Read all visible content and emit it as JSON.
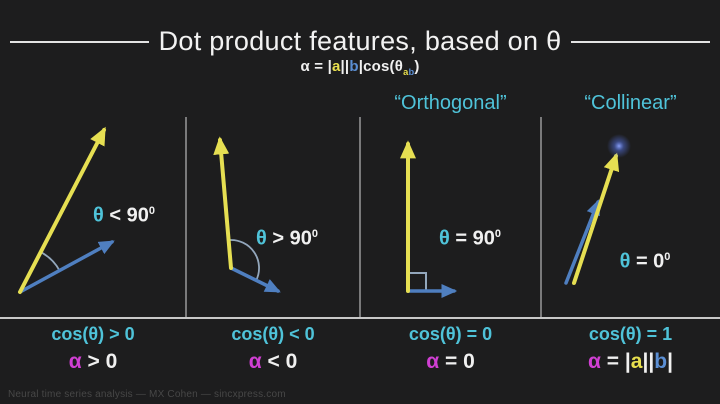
{
  "title": "Dot product features, based on θ",
  "subtitle_parts": [
    {
      "t": "α = |",
      "c": "white"
    },
    {
      "t": "a",
      "c": "yellow"
    },
    {
      "t": "||",
      "c": "white"
    },
    {
      "t": "b",
      "c": "blue"
    },
    {
      "t": "|cos(θ",
      "c": "white"
    },
    {
      "t": "a",
      "c": "yellow",
      "sub": true
    },
    {
      "t": "b",
      "c": "blue",
      "sub": true
    },
    {
      "t": ")",
      "c": "white"
    }
  ],
  "panels": [
    {
      "heading": "",
      "theta_parts": [
        {
          "t": "θ",
          "c": "cyan"
        },
        {
          "t": " < 90",
          "c": "white"
        },
        {
          "t": "0",
          "c": "white",
          "sup": true
        }
      ],
      "cos_parts": [
        {
          "t": "cos(θ) > 0",
          "c": "cyan"
        }
      ],
      "alpha_parts": [
        {
          "t": "α",
          "c": "magenta"
        },
        {
          "t": " > 0",
          "c": "white"
        }
      ]
    },
    {
      "heading": "",
      "theta_parts": [
        {
          "t": "θ",
          "c": "cyan"
        },
        {
          "t": " > 90",
          "c": "white"
        },
        {
          "t": "0",
          "c": "white",
          "sup": true
        }
      ],
      "cos_parts": [
        {
          "t": "cos(θ) < 0",
          "c": "cyan"
        }
      ],
      "alpha_parts": [
        {
          "t": "α",
          "c": "magenta"
        },
        {
          "t": " < 0",
          "c": "white"
        }
      ]
    },
    {
      "heading": "“Orthogonal”",
      "theta_parts": [
        {
          "t": "θ",
          "c": "cyan"
        },
        {
          "t": " = 90",
          "c": "white"
        },
        {
          "t": "0",
          "c": "white",
          "sup": true
        }
      ],
      "cos_parts": [
        {
          "t": "cos(θ) = 0",
          "c": "cyan"
        }
      ],
      "alpha_parts": [
        {
          "t": "α",
          "c": "magenta"
        },
        {
          "t": " = 0",
          "c": "white"
        }
      ]
    },
    {
      "heading": "“Collinear”",
      "theta_parts": [
        {
          "t": "θ",
          "c": "cyan"
        },
        {
          "t": " = 0",
          "c": "white"
        },
        {
          "t": "0",
          "c": "white",
          "sup": true
        }
      ],
      "cos_parts": [
        {
          "t": "cos(θ) = 1",
          "c": "cyan"
        }
      ],
      "alpha_parts": [
        {
          "t": "α",
          "c": "magenta"
        },
        {
          "t": " = |",
          "c": "white"
        },
        {
          "t": "a",
          "c": "yellow"
        },
        {
          "t": "||",
          "c": "white"
        },
        {
          "t": "b",
          "c": "blue"
        },
        {
          "t": "|",
          "c": "white"
        }
      ]
    }
  ],
  "footer": "Neural time series analysis — MX Cohen — sincxpress.com",
  "colors": {
    "white": "#f0f0f0",
    "cyan": "#4fc3d9",
    "magenta": "#d03fd3",
    "yellow": "#e8df4e",
    "blue": "#5b8fd4",
    "vector_yellow": "#e6df52",
    "vector_blue": "#4f7fc0",
    "background": "#1d1d1e"
  }
}
